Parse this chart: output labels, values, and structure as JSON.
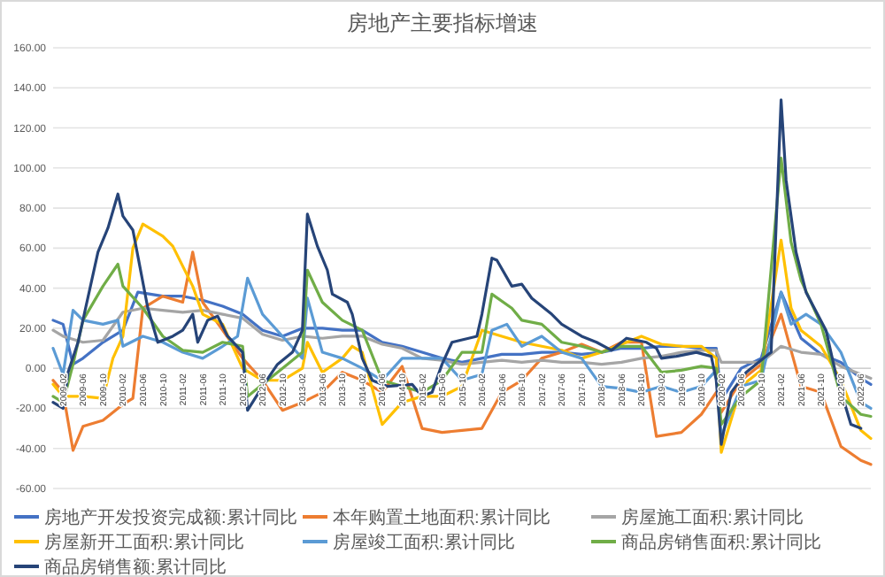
{
  "chart_data": {
    "type": "line",
    "title": "房地产主要指标增速",
    "xlim": [
      "2008-12",
      "2022-08"
    ],
    "xticks": [
      "2009-02",
      "2009-06",
      "2009-10",
      "2010-02",
      "2010-06",
      "2010-10",
      "2011-02",
      "2011-06",
      "2011-10",
      "2012-02",
      "2012-06",
      "2012-10",
      "2013-02",
      "2013-06",
      "2013-10",
      "2014-02",
      "2014-06",
      "2014-10",
      "2015-02",
      "2015-06",
      "2015-10",
      "2016-02",
      "2016-06",
      "2016-10",
      "2017-02",
      "2017-06",
      "2017-10",
      "2018-02",
      "2018-06",
      "2018-10",
      "2019-02",
      "2019-06",
      "2019-10",
      "2020-02",
      "2020-06",
      "2020-10",
      "2021-02",
      "2021-06",
      "2021-10",
      "2022-02",
      "2022-06"
    ],
    "ylim": [
      -60,
      160
    ],
    "yticks": [
      {
        "value": -60,
        "label": "-60.00"
      },
      {
        "value": -40,
        "label": "-40.00"
      },
      {
        "value": -20,
        "label": "-20.00"
      },
      {
        "value": 0,
        "label": "0.00"
      },
      {
        "value": 20,
        "label": "20.00"
      },
      {
        "value": 40,
        "label": "40.00"
      },
      {
        "value": 60,
        "label": "60.00"
      },
      {
        "value": 80,
        "label": "80.00"
      },
      {
        "value": 100,
        "label": "100.00"
      },
      {
        "value": 120,
        "label": "120.00"
      },
      {
        "value": 140,
        "label": "140.00"
      },
      {
        "value": 160,
        "label": "160.00"
      }
    ],
    "grid": "y",
    "legend": "bottom",
    "series": [
      {
        "name": "房地产开发投资完成额:累计同比",
        "color": "#4472c4",
        "x": [
          "2008-12",
          "2009-02",
          "2009-04",
          "2009-06",
          "2009-10",
          "2010-02",
          "2010-05",
          "2010-10",
          "2011-02",
          "2011-06",
          "2011-10",
          "2012-02",
          "2012-06",
          "2012-10",
          "2013-02",
          "2013-06",
          "2013-10",
          "2014-02",
          "2014-06",
          "2014-10",
          "2015-02",
          "2015-06",
          "2015-10",
          "2016-02",
          "2016-06",
          "2016-10",
          "2017-02",
          "2017-06",
          "2017-10",
          "2018-02",
          "2018-06",
          "2018-10",
          "2019-02",
          "2019-06",
          "2019-10",
          "2020-01",
          "2020-02",
          "2020-06",
          "2020-10",
          "2021-02",
          "2021-06",
          "2021-10",
          "2022-02",
          "2022-06",
          "2022-08"
        ],
        "values": [
          24,
          22,
          2,
          5,
          13,
          19,
          38,
          36,
          36,
          34,
          31,
          27,
          19,
          16,
          20,
          20,
          19,
          19,
          13,
          11,
          8,
          5,
          3,
          5,
          7,
          7,
          8,
          8,
          7,
          8,
          10,
          10,
          11,
          11,
          10,
          10,
          -16,
          0,
          5,
          38,
          15,
          7,
          3,
          -5,
          -8
        ]
      },
      {
        "name": "本年购置土地面积:累计同比",
        "color": "#ed7d31",
        "x": [
          "2008-12",
          "2009-02",
          "2009-04",
          "2009-06",
          "2009-10",
          "2010-02",
          "2010-04",
          "2010-06",
          "2010-10",
          "2011-02",
          "2011-04",
          "2011-06",
          "2011-10",
          "2012-02",
          "2012-06",
          "2012-10",
          "2013-02",
          "2013-06",
          "2013-10",
          "2014-02",
          "2014-06",
          "2014-10",
          "2015-02",
          "2015-06",
          "2015-10",
          "2016-02",
          "2016-06",
          "2016-10",
          "2017-02",
          "2017-06",
          "2017-10",
          "2018-02",
          "2018-06",
          "2018-10",
          "2019-01",
          "2019-06",
          "2019-10",
          "2020-01",
          "2020-02",
          "2020-06",
          "2020-10",
          "2021-02",
          "2021-06",
          "2021-10",
          "2022-02",
          "2022-06",
          "2022-08"
        ],
        "values": [
          -6,
          -12,
          -41,
          -29,
          -26,
          -18,
          -15,
          30,
          36,
          33,
          58,
          33,
          19,
          5,
          -6,
          -21,
          -17,
          -12,
          -2,
          -6,
          -12,
          1,
          -30,
          -32,
          -31,
          -30,
          -12,
          -6,
          5,
          8,
          12,
          8,
          13,
          13,
          -34,
          -32,
          -23,
          -12,
          -22,
          -6,
          2,
          27,
          -9,
          -12,
          -39,
          -46,
          -48
        ]
      },
      {
        "name": "房屋施工面积:累计同比",
        "color": "#a5a5a5",
        "x": [
          "2008-12",
          "2009-02",
          "2009-06",
          "2009-10",
          "2010-02",
          "2010-06",
          "2010-10",
          "2011-02",
          "2011-06",
          "2011-10",
          "2012-02",
          "2012-06",
          "2012-10",
          "2013-02",
          "2013-06",
          "2013-10",
          "2014-02",
          "2014-06",
          "2014-10",
          "2015-02",
          "2015-06",
          "2015-10",
          "2016-02",
          "2016-06",
          "2016-10",
          "2017-02",
          "2017-06",
          "2017-10",
          "2018-02",
          "2018-06",
          "2018-10",
          "2019-02",
          "2019-06",
          "2019-10",
          "2020-01",
          "2020-02",
          "2020-06",
          "2020-10",
          "2021-02",
          "2021-06",
          "2021-10",
          "2022-02",
          "2022-06",
          "2022-08"
        ],
        "values": [
          19,
          16,
          13,
          14,
          28,
          30,
          29,
          28,
          29,
          27,
          25,
          17,
          14,
          16,
          15,
          16,
          16,
          12,
          10,
          5,
          4,
          2,
          3,
          4,
          3,
          4,
          3,
          3,
          2,
          3,
          5,
          6,
          8,
          9,
          9,
          3,
          3,
          3,
          11,
          8,
          7,
          1,
          -3,
          -5
        ]
      },
      {
        "name": "房屋新开工面积:累计同比",
        "color": "#ffc000",
        "x": [
          "2008-12",
          "2009-02",
          "2009-06",
          "2009-10",
          "2009-12",
          "2010-02",
          "2010-04",
          "2010-06",
          "2010-10",
          "2010-12",
          "2011-04",
          "2011-06",
          "2011-10",
          "2012-02",
          "2012-06",
          "2012-10",
          "2013-02",
          "2013-03",
          "2013-06",
          "2013-10",
          "2013-12",
          "2014-02",
          "2014-06",
          "2014-10",
          "2015-02",
          "2015-06",
          "2015-10",
          "2016-02",
          "2016-06",
          "2016-10",
          "2017-02",
          "2017-06",
          "2017-10",
          "2018-02",
          "2018-06",
          "2018-10",
          "2019-02",
          "2019-06",
          "2019-10",
          "2020-01",
          "2020-02",
          "2020-06",
          "2020-10",
          "2021-02",
          "2021-04",
          "2021-06",
          "2021-10",
          "2022-02",
          "2022-06",
          "2022-08"
        ],
        "values": [
          -8,
          -14,
          -14,
          -15,
          5,
          16,
          60,
          72,
          66,
          61,
          41,
          27,
          22,
          0,
          -6,
          -6,
          0,
          13,
          -2,
          5,
          11,
          8,
          -28,
          -17,
          -14,
          -14,
          -9,
          19,
          16,
          13,
          11,
          9,
          5,
          8,
          12,
          16,
          12,
          11,
          11,
          5,
          -42,
          -9,
          -1,
          64,
          30,
          19,
          11,
          -6,
          -31,
          -35
        ]
      },
      {
        "name": "房屋竣工面积:累计同比",
        "color": "#5b9bd5",
        "x": [
          "2008-12",
          "2009-02",
          "2009-04",
          "2009-06",
          "2009-10",
          "2010-01",
          "2010-02",
          "2010-06",
          "2010-10",
          "2011-02",
          "2011-06",
          "2011-10",
          "2012-01",
          "2012-03",
          "2012-06",
          "2012-10",
          "2013-02",
          "2013-03",
          "2013-06",
          "2013-10",
          "2014-02",
          "2014-06",
          "2014-10",
          "2015-02",
          "2015-06",
          "2015-10",
          "2016-02",
          "2016-04",
          "2016-07",
          "2016-10",
          "2017-02",
          "2017-06",
          "2017-10",
          "2018-02",
          "2018-06",
          "2018-10",
          "2019-02",
          "2019-06",
          "2019-10",
          "2020-01",
          "2020-02",
          "2020-06",
          "2020-10",
          "2021-02",
          "2021-04",
          "2021-07",
          "2021-10",
          "2022-02",
          "2022-06",
          "2022-08"
        ],
        "values": [
          10,
          -3,
          29,
          24,
          22,
          24,
          11,
          16,
          13,
          8,
          5,
          11,
          16,
          45,
          27,
          16,
          5,
          35,
          8,
          5,
          0,
          -6,
          5,
          5,
          5,
          -6,
          -3,
          19,
          22,
          11,
          16,
          8,
          5,
          -9,
          -10,
          -12,
          -9,
          -12,
          -9,
          -1,
          -34,
          -9,
          -6,
          38,
          22,
          27,
          22,
          8,
          -17,
          -20
        ]
      },
      {
        "name": "商品房销售面积:累计同比",
        "color": "#70ad47",
        "x": [
          "2008-12",
          "2009-02",
          "2009-04",
          "2009-06",
          "2009-10",
          "2010-01",
          "2010-02",
          "2010-06",
          "2010-10",
          "2011-02",
          "2011-06",
          "2011-10",
          "2012-02",
          "2012-03",
          "2012-06",
          "2012-10",
          "2013-02",
          "2013-03",
          "2013-06",
          "2013-10",
          "2014-02",
          "2014-06",
          "2014-10",
          "2015-02",
          "2015-06",
          "2015-10",
          "2016-02",
          "2016-04",
          "2016-08",
          "2016-10",
          "2017-02",
          "2017-06",
          "2017-10",
          "2018-02",
          "2018-06",
          "2018-10",
          "2019-02",
          "2019-06",
          "2019-10",
          "2020-01",
          "2020-02",
          "2020-06",
          "2020-10",
          "2021-02",
          "2021-04",
          "2021-06",
          "2021-10",
          "2022-02",
          "2022-06",
          "2022-08"
        ],
        "values": [
          -14,
          -17,
          2,
          24,
          41,
          52,
          41,
          30,
          16,
          9,
          8,
          13,
          11,
          -14,
          -8,
          0,
          8,
          49,
          33,
          24,
          19,
          -6,
          -9,
          -12,
          -6,
          8,
          8,
          37,
          30,
          24,
          22,
          13,
          11,
          8,
          11,
          11,
          -2,
          -1,
          1,
          0,
          -28,
          -14,
          -6,
          105,
          63,
          44,
          22,
          -14,
          -23,
          -24
        ]
      },
      {
        "name": "商品房销售额:累计同比",
        "color": "#264478",
        "x": [
          "2008-12",
          "2009-02",
          "2009-03",
          "2009-05",
          "2009-09",
          "2009-11",
          "2010-01",
          "2010-02",
          "2010-04",
          "2010-05",
          "2010-07",
          "2010-09",
          "2010-12",
          "2011-02",
          "2011-04",
          "2011-05",
          "2011-07",
          "2011-09",
          "2011-11",
          "2012-02",
          "2012-03",
          "2012-06",
          "2012-09",
          "2012-12",
          "2013-02",
          "2013-03",
          "2013-05",
          "2013-07",
          "2013-08",
          "2013-11",
          "2013-12",
          "2014-02",
          "2014-04",
          "2014-07",
          "2014-12",
          "2015-02",
          "2015-04",
          "2015-06",
          "2015-08",
          "2016-01",
          "2016-02",
          "2016-04",
          "2016-05",
          "2016-08",
          "2016-10",
          "2016-12",
          "2017-04",
          "2017-06",
          "2017-10",
          "2018-01",
          "2018-04",
          "2018-07",
          "2018-11",
          "2019-01",
          "2019-02",
          "2019-05",
          "2019-09",
          "2019-12",
          "2020-01",
          "2020-02",
          "2020-04",
          "2020-07",
          "2020-10",
          "2020-12",
          "2021-02",
          "2021-03",
          "2021-05",
          "2021-07",
          "2021-11",
          "2022-01",
          "2022-04",
          "2022-06"
        ],
        "values": [
          -17,
          -20,
          -2,
          13,
          58,
          70,
          87,
          76,
          69,
          56,
          30,
          13,
          16,
          19,
          27,
          13,
          24,
          26,
          16,
          8,
          -21,
          -9,
          2,
          8,
          19,
          77,
          61,
          49,
          37,
          33,
          27,
          5,
          -6,
          -9,
          -8,
          -14,
          -12,
          2,
          13,
          16,
          27,
          55,
          54,
          41,
          42,
          35,
          27,
          22,
          16,
          13,
          9,
          15,
          13,
          10,
          5,
          6,
          8,
          6,
          -6,
          -38,
          -12,
          -2,
          4,
          8,
          134,
          94,
          58,
          38,
          19,
          -3,
          -28,
          -30
        ]
      }
    ]
  }
}
